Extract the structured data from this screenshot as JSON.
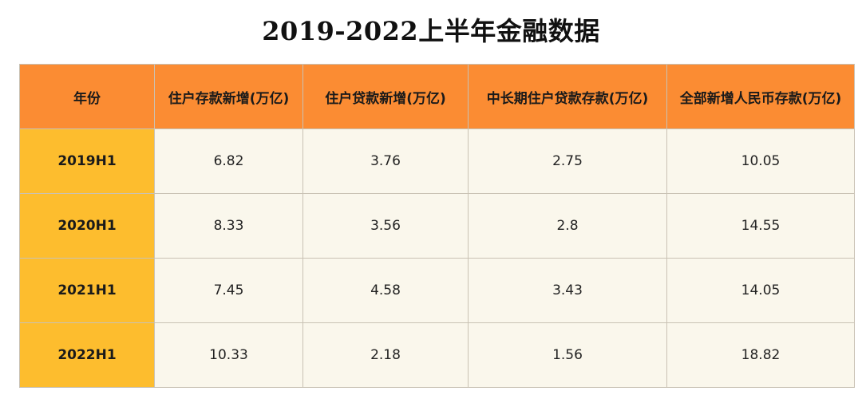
{
  "title": "2019-2022上半年金融数据",
  "table": {
    "headers": [
      "年份",
      "住户存款新增(万亿)",
      "住户贷款新增(万亿)",
      "中长期住户贷款存款(万亿)",
      "全部新增人民币存款(万亿)"
    ],
    "rows": [
      [
        "2019H1",
        "6.82",
        "3.76",
        "2.75",
        "10.05"
      ],
      [
        "2020H1",
        "8.33",
        "3.56",
        "2.8",
        "14.55"
      ],
      [
        "2021H1",
        "7.45",
        "4.58",
        "3.43",
        "14.05"
      ],
      [
        "2022H1",
        "10.33",
        "2.18",
        "1.56",
        "18.82"
      ]
    ]
  },
  "colors": {
    "header_bg": "#fb8c33",
    "year_cell_bg": "#fdbd2e",
    "data_cell_bg": "#faf7ec",
    "border": "#c9c2b4"
  }
}
